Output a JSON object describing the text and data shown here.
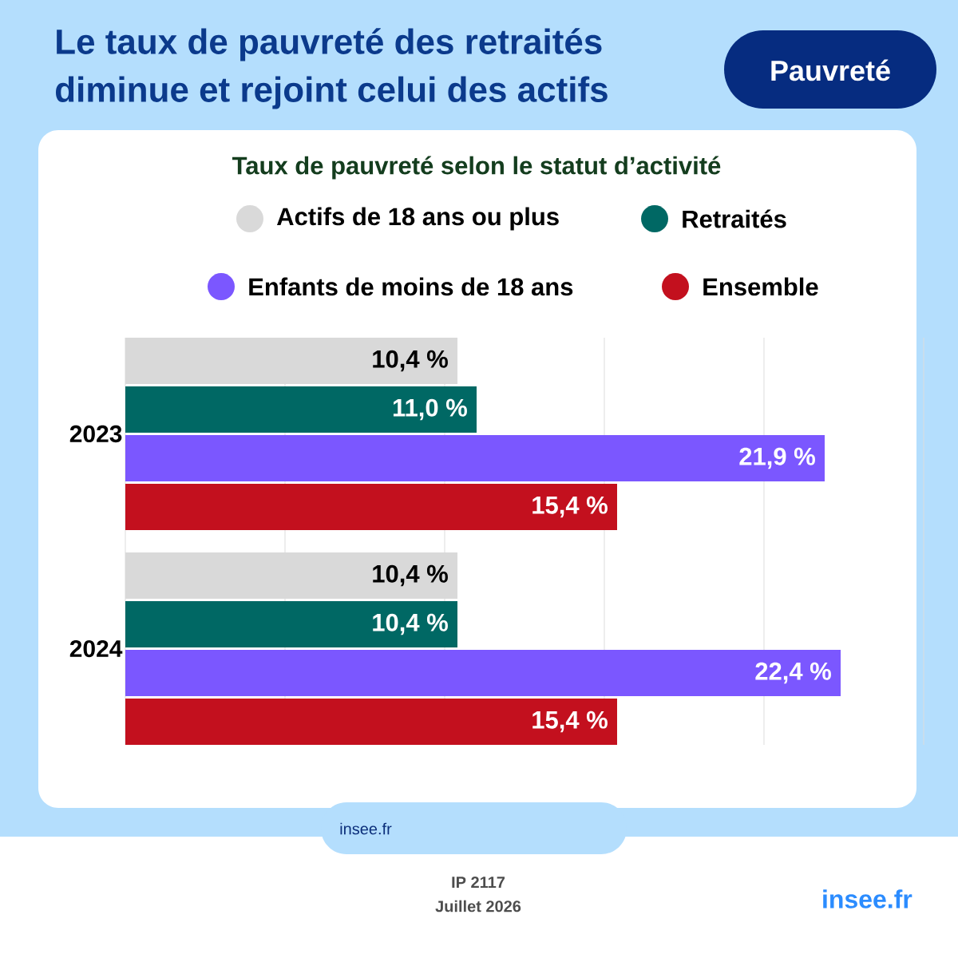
{
  "chart_data": {
    "type": "bar",
    "orientation": "horizontal",
    "title": "Le taux de pauvreté des retraités diminue et rejoint celui des actifs",
    "subtitle": "Taux de pauvreté selon le statut d’activité",
    "categories": [
      "2023",
      "2024"
    ],
    "series": [
      {
        "name": "Actifs de 18 ans ou plus",
        "color": "#d9d9d9",
        "values": [
          10.4,
          10.4
        ],
        "value_labels": [
          "10,4 %",
          "10,4 %"
        ]
      },
      {
        "name": "Retraités",
        "color": "#006864",
        "values": [
          11.0,
          10.4
        ],
        "value_labels": [
          "11,0 %",
          "10,4 %"
        ]
      },
      {
        "name": "Enfants de moins de 18 ans",
        "color": "#7b57ff",
        "values": [
          21.9,
          22.4
        ],
        "value_labels": [
          "21,9 %",
          "22,4 %"
        ]
      },
      {
        "name": "Ensemble",
        "color": "#c3101e",
        "values": [
          15.4,
          15.4
        ],
        "value_labels": [
          "15,4 %",
          "15,4 %"
        ]
      }
    ],
    "xlim": [
      0,
      25
    ],
    "xticks": [
      {
        "value": 0,
        "label": null
      },
      {
        "value": 5,
        "label": null
      },
      {
        "value": 10,
        "label": null
      },
      {
        "value": 15,
        "label": null
      },
      {
        "value": 20,
        "label": null
      },
      {
        "value": 25,
        "label": null
      }
    ],
    "grid": "x",
    "legend": "top",
    "tick_labels": "y",
    "annotations": [
      "Pauvreté",
      "insee.fr",
      "IP 2117",
      "Juillet 2026",
      "insee.fr"
    ]
  }
}
